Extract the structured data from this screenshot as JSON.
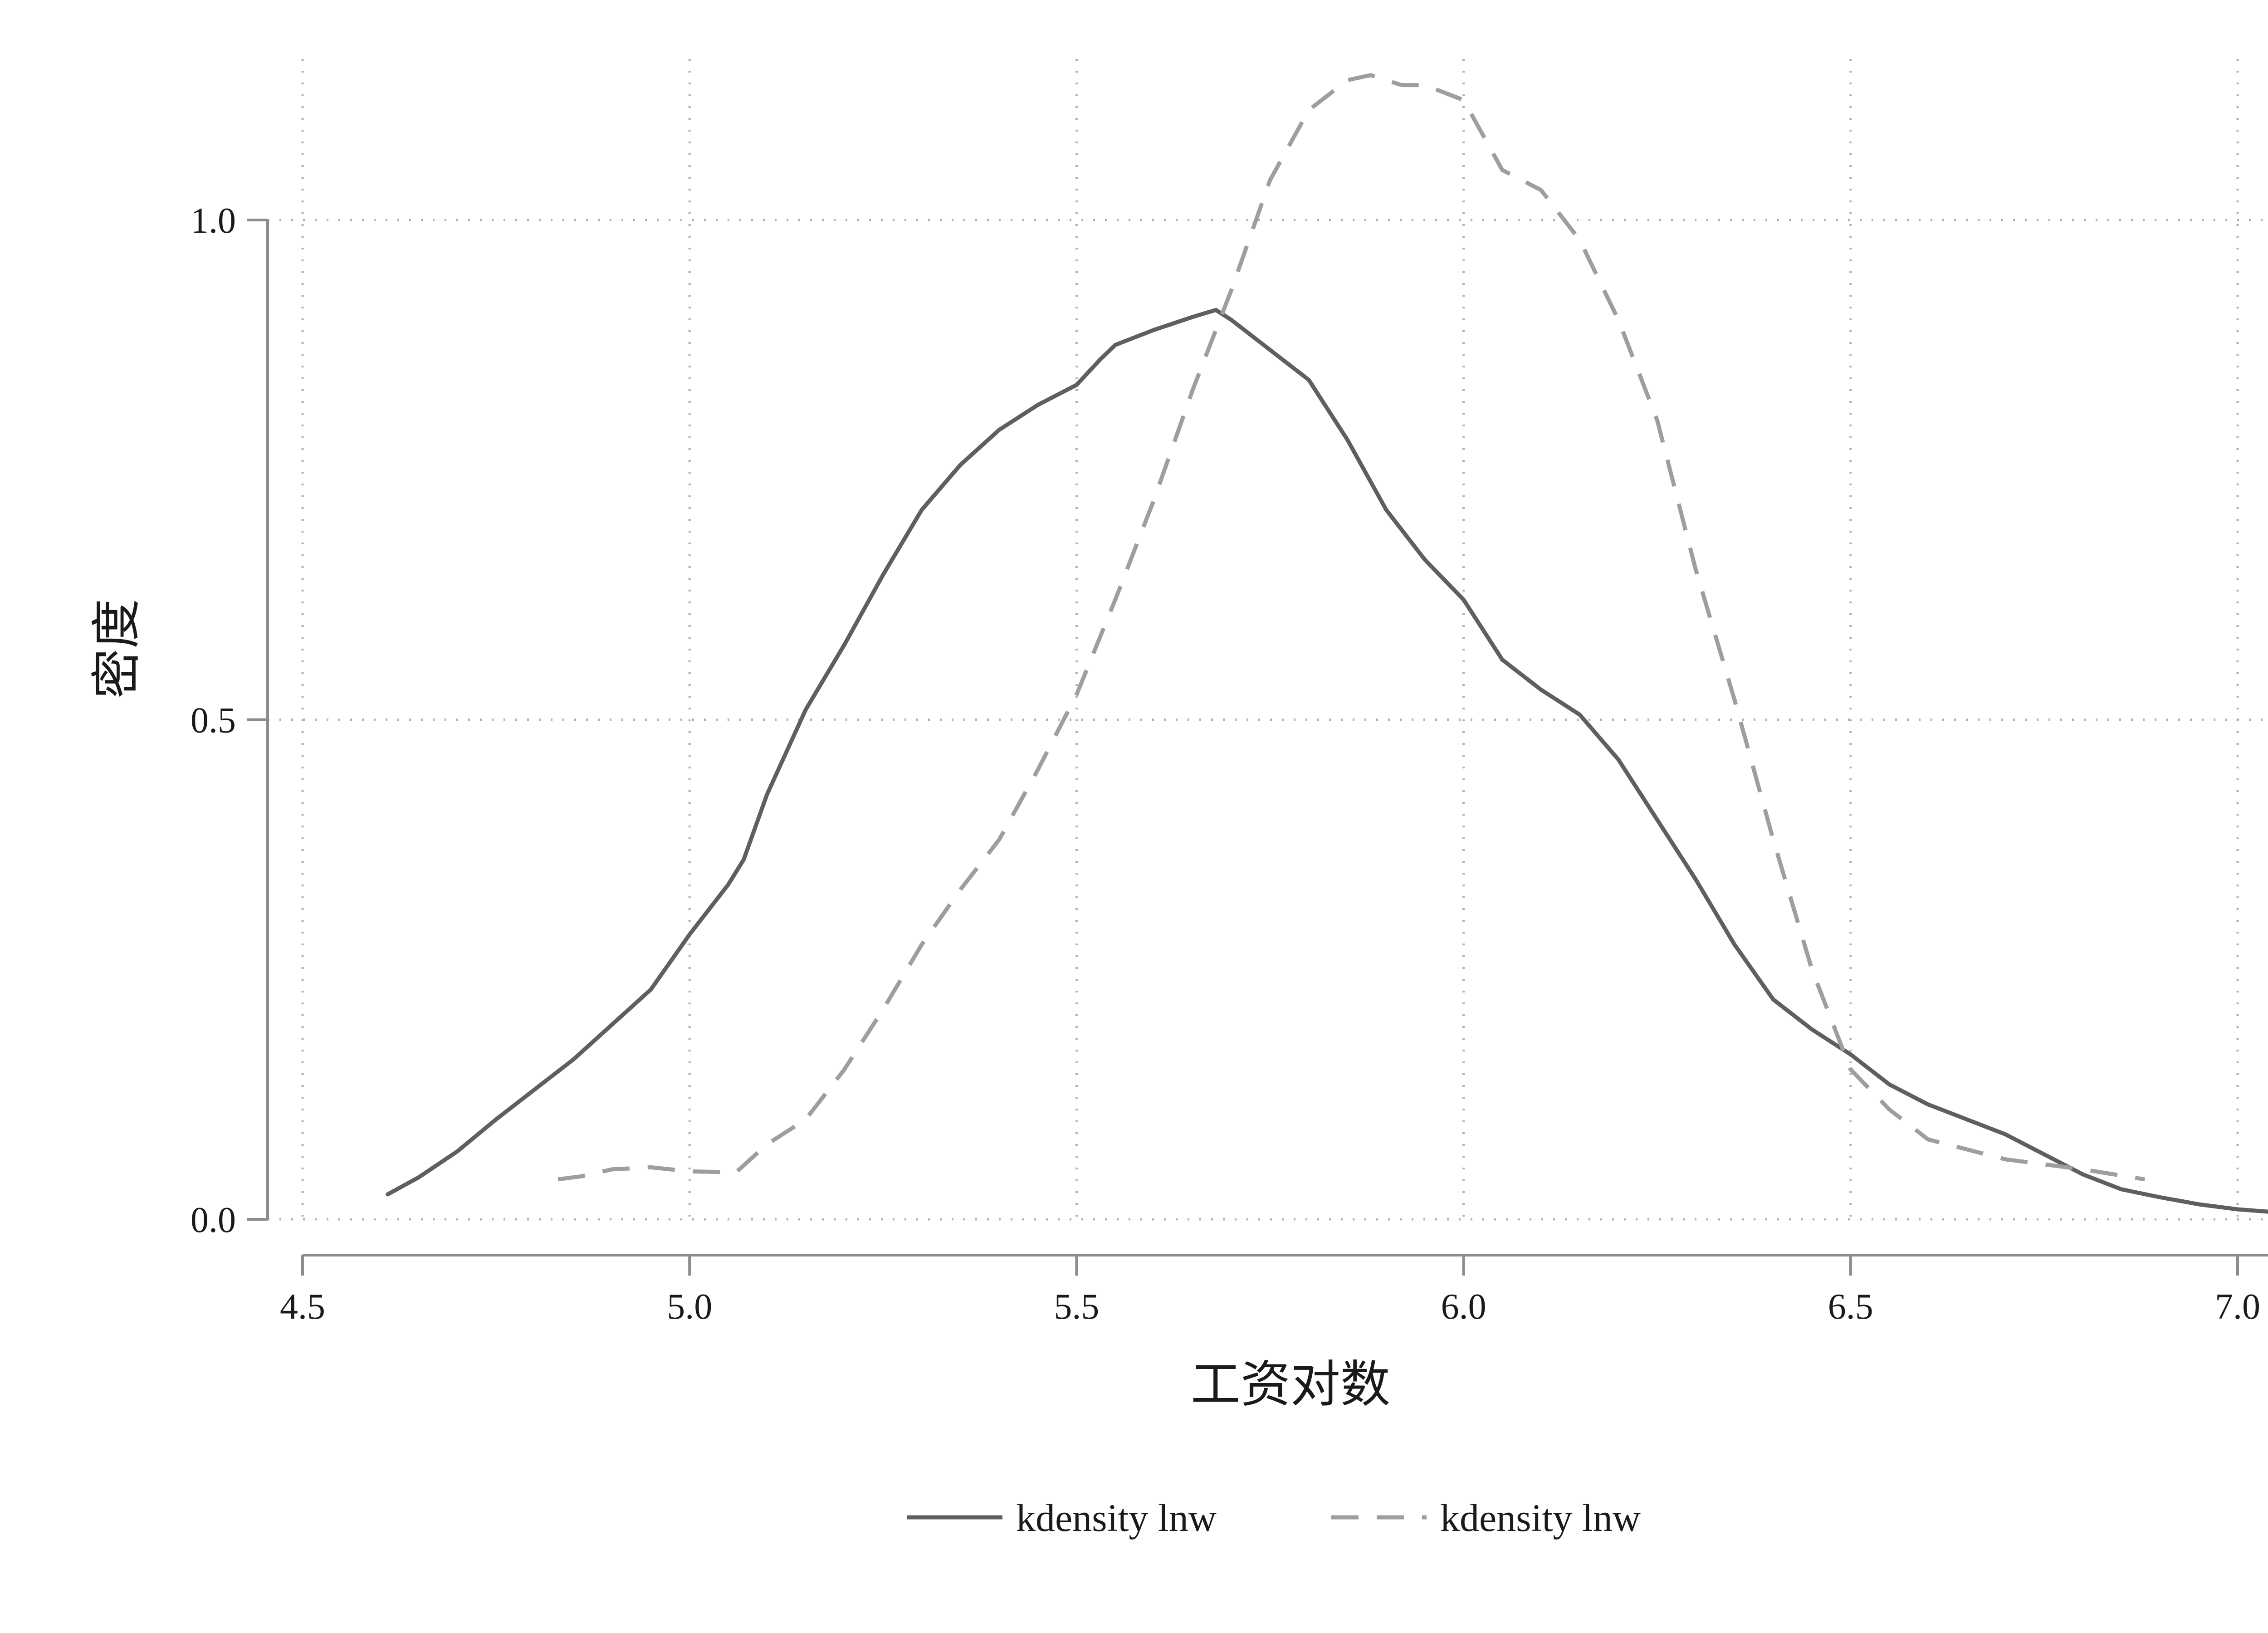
{
  "chart_data": {
    "type": "line",
    "xlabel": "工资对数",
    "ylabel": "密度",
    "xlim": [
      4.5,
      7.05
    ],
    "ylim": [
      0,
      1.15
    ],
    "x_ticks": [
      4.5,
      5.0,
      5.5,
      6.0,
      6.5,
      7.0
    ],
    "x_tick_labels": [
      "4.5",
      "5.0",
      "5.5",
      "6.0",
      "6.5",
      "7.0"
    ],
    "y_ticks": [
      0.0,
      0.5,
      1.0
    ],
    "y_tick_labels": [
      "0.0",
      "0.5",
      "1.0"
    ],
    "grid": "dotted",
    "legend_position": "bottom",
    "series": [
      {
        "name": "kdensity lnw",
        "color": "#5f5f5f",
        "dash": "solid",
        "points": [
          [
            4.61,
            0.025
          ],
          [
            4.65,
            0.042
          ],
          [
            4.7,
            0.068
          ],
          [
            4.75,
            0.1
          ],
          [
            4.8,
            0.13
          ],
          [
            4.85,
            0.16
          ],
          [
            4.9,
            0.195
          ],
          [
            4.95,
            0.23
          ],
          [
            5.0,
            0.285
          ],
          [
            5.05,
            0.335
          ],
          [
            5.07,
            0.36
          ],
          [
            5.1,
            0.425
          ],
          [
            5.15,
            0.51
          ],
          [
            5.2,
            0.575
          ],
          [
            5.25,
            0.645
          ],
          [
            5.3,
            0.71
          ],
          [
            5.35,
            0.755
          ],
          [
            5.4,
            0.79
          ],
          [
            5.45,
            0.815
          ],
          [
            5.5,
            0.835
          ],
          [
            5.53,
            0.86
          ],
          [
            5.55,
            0.875
          ],
          [
            5.6,
            0.89
          ],
          [
            5.65,
            0.903
          ],
          [
            5.68,
            0.91
          ],
          [
            5.7,
            0.9
          ],
          [
            5.75,
            0.87
          ],
          [
            5.8,
            0.84
          ],
          [
            5.85,
            0.78
          ],
          [
            5.9,
            0.71
          ],
          [
            5.95,
            0.66
          ],
          [
            6.0,
            0.62
          ],
          [
            6.05,
            0.56
          ],
          [
            6.1,
            0.53
          ],
          [
            6.15,
            0.505
          ],
          [
            6.2,
            0.46
          ],
          [
            6.25,
            0.4
          ],
          [
            6.3,
            0.34
          ],
          [
            6.35,
            0.275
          ],
          [
            6.4,
            0.22
          ],
          [
            6.45,
            0.19
          ],
          [
            6.5,
            0.165
          ],
          [
            6.55,
            0.135
          ],
          [
            6.6,
            0.115
          ],
          [
            6.65,
            0.1
          ],
          [
            6.7,
            0.085
          ],
          [
            6.75,
            0.065
          ],
          [
            6.8,
            0.045
          ],
          [
            6.85,
            0.03
          ],
          [
            6.9,
            0.022
          ],
          [
            6.95,
            0.015
          ],
          [
            7.0,
            0.01
          ],
          [
            7.05,
            0.007
          ]
        ]
      },
      {
        "name": "kdensity lnw",
        "color": "#9e9e9e",
        "dash": "dashed",
        "points": [
          [
            4.83,
            0.04
          ],
          [
            4.86,
            0.043
          ],
          [
            4.9,
            0.05
          ],
          [
            4.95,
            0.052
          ],
          [
            5.0,
            0.048
          ],
          [
            5.06,
            0.047
          ],
          [
            5.1,
            0.075
          ],
          [
            5.15,
            0.1
          ],
          [
            5.2,
            0.15
          ],
          [
            5.25,
            0.21
          ],
          [
            5.3,
            0.275
          ],
          [
            5.35,
            0.33
          ],
          [
            5.4,
            0.38
          ],
          [
            5.45,
            0.45
          ],
          [
            5.5,
            0.525
          ],
          [
            5.55,
            0.62
          ],
          [
            5.6,
            0.72
          ],
          [
            5.65,
            0.83
          ],
          [
            5.7,
            0.93
          ],
          [
            5.75,
            1.04
          ],
          [
            5.8,
            1.11
          ],
          [
            5.85,
            1.14
          ],
          [
            5.88,
            1.145
          ],
          [
            5.92,
            1.135
          ],
          [
            5.95,
            1.135
          ],
          [
            6.0,
            1.12
          ],
          [
            6.05,
            1.05
          ],
          [
            6.1,
            1.03
          ],
          [
            6.15,
            0.98
          ],
          [
            6.2,
            0.9
          ],
          [
            6.25,
            0.8
          ],
          [
            6.3,
            0.65
          ],
          [
            6.35,
            0.52
          ],
          [
            6.4,
            0.38
          ],
          [
            6.45,
            0.25
          ],
          [
            6.5,
            0.15
          ],
          [
            6.55,
            0.11
          ],
          [
            6.6,
            0.08
          ],
          [
            6.65,
            0.07
          ],
          [
            6.7,
            0.06
          ],
          [
            6.75,
            0.055
          ],
          [
            6.8,
            0.05
          ],
          [
            6.88,
            0.04
          ]
        ]
      }
    ]
  }
}
